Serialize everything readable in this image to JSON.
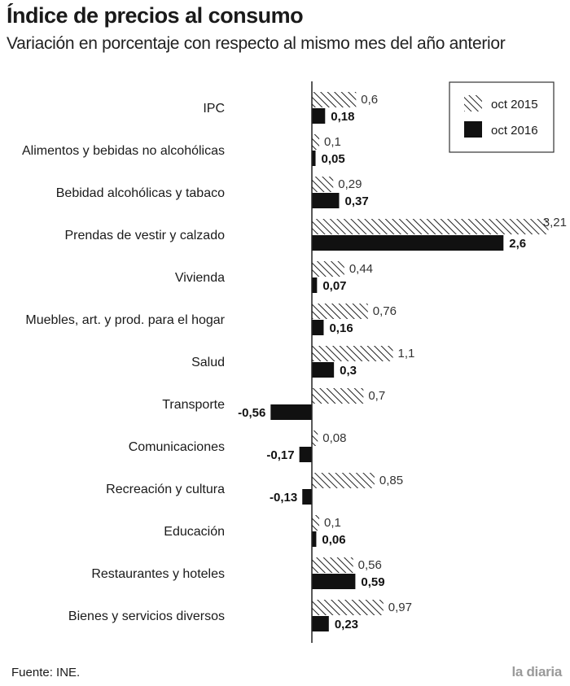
{
  "header": {
    "title": "Índice de precios al consumo",
    "subtitle": "Variación en porcentaje con respecto al mismo mes del año anterior"
  },
  "footer": {
    "source": "Fuente: INE.",
    "brand": "la diaria"
  },
  "colors": {
    "oct2016": "#111111",
    "oct2015_hatch": "#222222",
    "axis": "#222222"
  },
  "chart_data": {
    "type": "bar",
    "orientation": "horizontal",
    "categories": [
      "IPC",
      "Alimentos y bebidas no alcohólicas",
      "Bebidad alcohólicas y tabaco",
      "Prendas de vestir y calzado",
      "Vivienda",
      "Muebles, art. y prod. para el hogar",
      "Salud",
      "Transporte",
      "Comunicaciones",
      "Recreación y cultura",
      "Educación",
      "Restaurantes y hoteles",
      "Bienes y servicios diversos"
    ],
    "series": [
      {
        "name": "oct 2015",
        "pattern": "hatched",
        "values": [
          0.6,
          0.1,
          0.29,
          3.21,
          0.44,
          0.76,
          1.1,
          0.7,
          0.08,
          0.85,
          0.1,
          0.56,
          0.97
        ],
        "labels": [
          "0,6",
          "0,1",
          "0,29",
          "3,21",
          "0,44",
          "0,76",
          "1,1",
          "0,7",
          "0,08",
          "0,85",
          "0,1",
          "0,56",
          "0,97"
        ]
      },
      {
        "name": "oct 2016",
        "pattern": "solid",
        "values": [
          0.18,
          0.05,
          0.37,
          2.6,
          0.07,
          0.16,
          0.3,
          -0.56,
          -0.17,
          -0.13,
          0.06,
          0.59,
          0.23
        ],
        "labels": [
          "0,18",
          "0,05",
          "0,37",
          "2,6",
          "0,07",
          "0,16",
          "0,3",
          "-0,56",
          "-0,17",
          "-0,13",
          "0,06",
          "0,59",
          "0,23"
        ]
      }
    ],
    "xlim": [
      -0.56,
      3.21
    ],
    "legend_position": "top-right",
    "grid": false
  }
}
